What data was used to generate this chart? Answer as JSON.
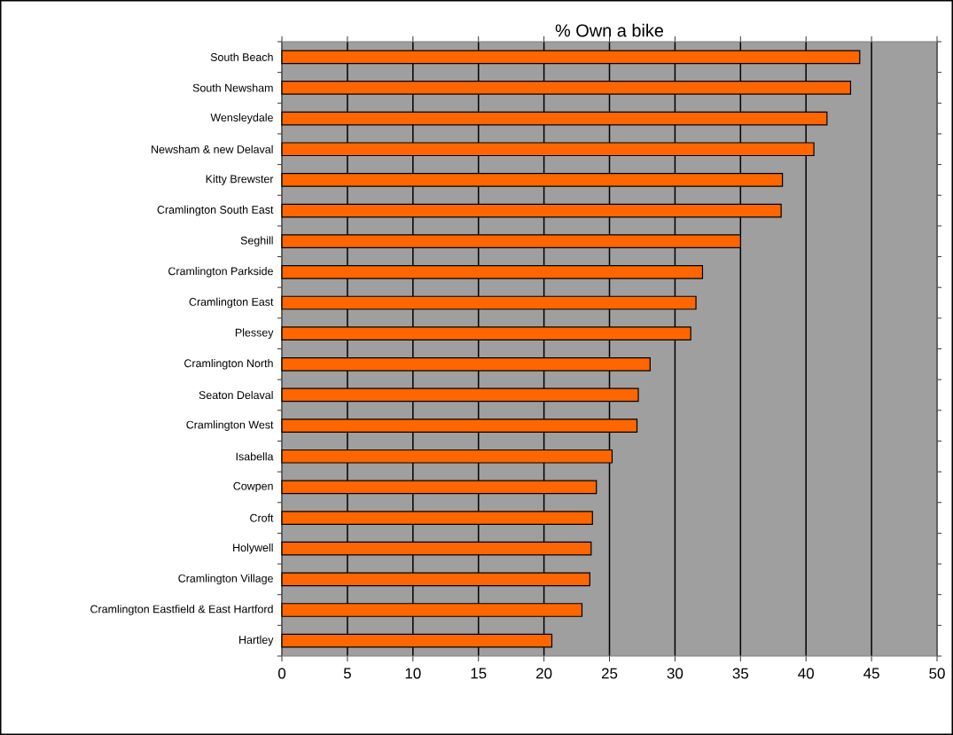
{
  "chart_data": {
    "type": "bar",
    "orientation": "horizontal",
    "title": "% Own a bike",
    "categories": [
      "South Beach",
      "South Newsham",
      "Wensleydale",
      "Newsham & new Delaval",
      "Kitty Brewster",
      "Cramlington South East",
      "Seghill",
      "Cramlington Parkside",
      "Cramlington East",
      "Plessey",
      "Cramlington North",
      "Seaton Delaval",
      "Cramlington West",
      "Isabella",
      "Cowpen",
      "Croft",
      "Holywell",
      "Cramlington Village",
      "Cramlington Eastfield & East Hartford",
      "Hartley"
    ],
    "values": [
      44.1,
      43.4,
      41.6,
      40.6,
      38.2,
      38.1,
      35.0,
      32.1,
      31.6,
      31.2,
      28.1,
      27.2,
      27.1,
      25.2,
      24.0,
      23.7,
      23.6,
      23.5,
      22.9,
      20.6
    ],
    "color": "#ff6600",
    "xlim": [
      0,
      50
    ],
    "xticks": [
      0,
      5,
      10,
      15,
      20,
      25,
      30,
      35,
      40,
      45,
      50
    ],
    "grid": "x"
  }
}
